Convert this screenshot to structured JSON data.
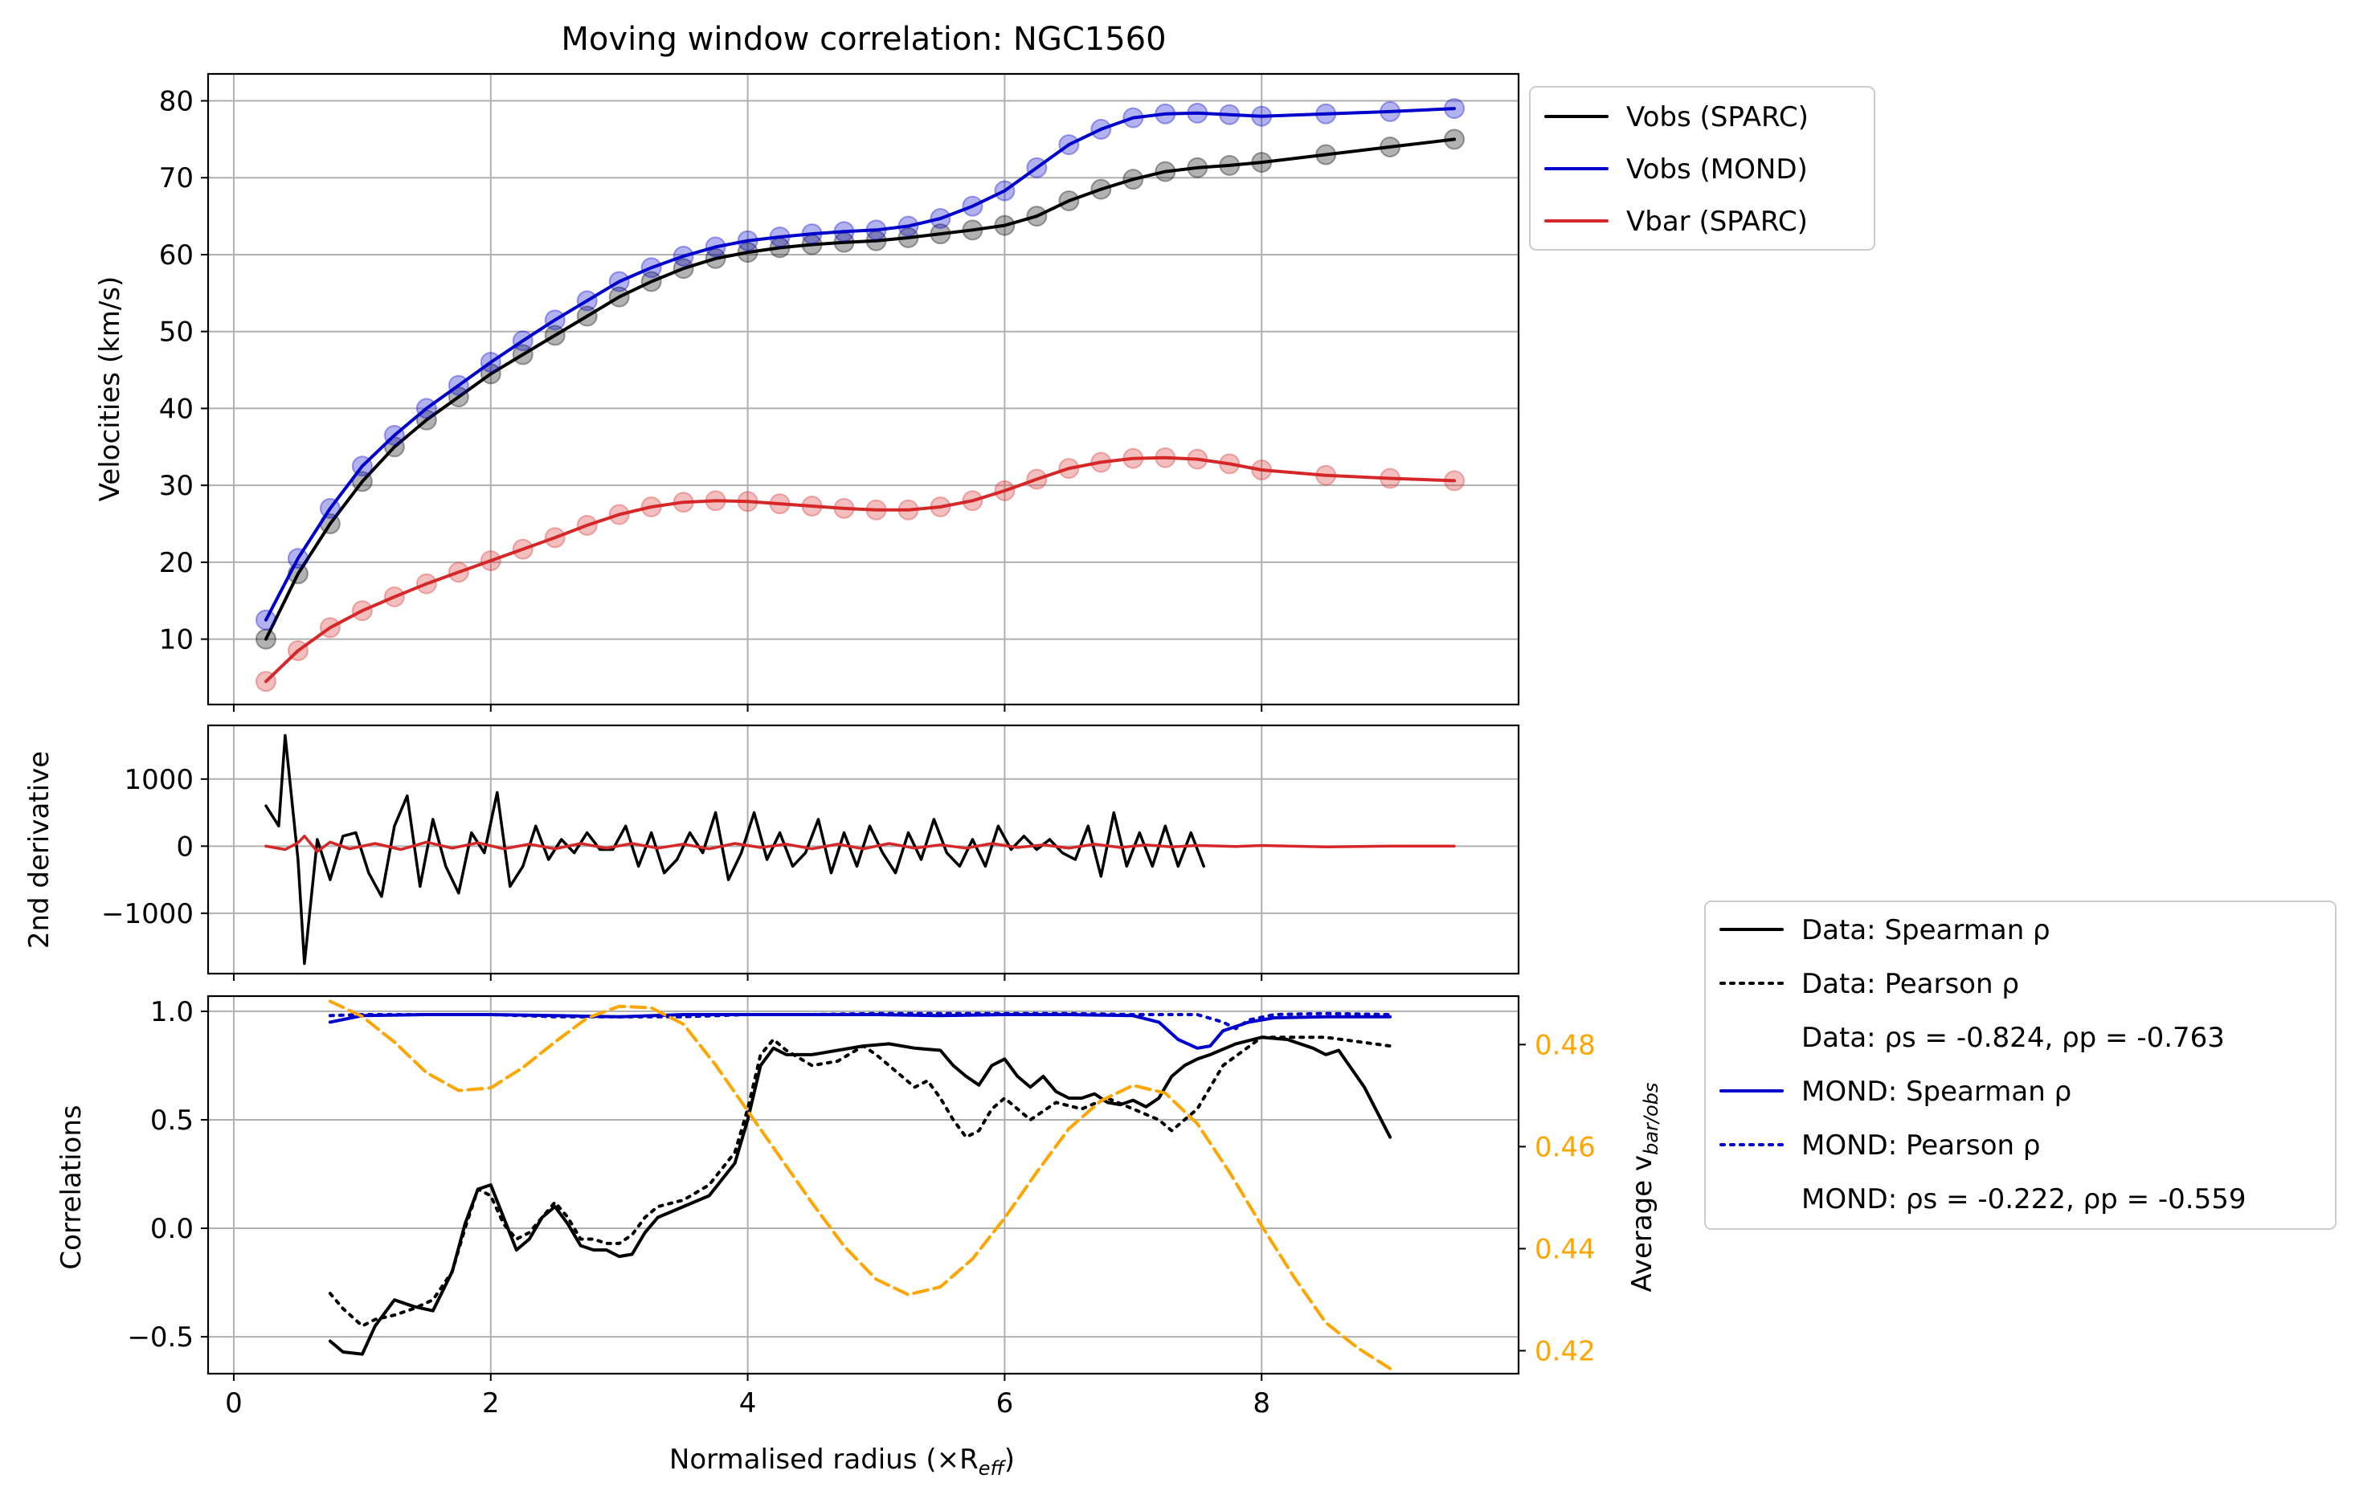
{
  "figure": {
    "title": "Moving window correlation: NGC1560",
    "xlabel": "Normalised radius (×R",
    "xlabel_sub": "eff",
    "xlabel_close": ")"
  },
  "colors": {
    "black": "#000000",
    "blue": "#0000cc",
    "red": "#d62728",
    "orange": "#ffa500",
    "grid": "#b0b0b0"
  },
  "legend_top": {
    "entries": [
      {
        "label": "Vobs (SPARC)",
        "color": "#000000",
        "style": "solid"
      },
      {
        "label": "Vobs (MOND)",
        "color": "#0000cc",
        "style": "solid"
      },
      {
        "label": "Vbar (SPARC)",
        "color": "#d62728",
        "style": "solid"
      }
    ],
    "position": "outside upper right"
  },
  "legend_bottom": {
    "entries": [
      {
        "label": "Data: Spearman ρ",
        "color": "#000000",
        "style": "solid"
      },
      {
        "label": "Data: Pearson ρ",
        "color": "#000000",
        "style": "dotted"
      },
      {
        "label": "Data: ρs = -0.824, ρp = -0.763",
        "color": "none",
        "style": "none"
      },
      {
        "label": "MOND: Spearman ρ",
        "color": "#0000cc",
        "style": "solid"
      },
      {
        "label": "MOND: Pearson ρ",
        "color": "#0000cc",
        "style": "dotted"
      },
      {
        "label": "MOND: ρs = -0.222, ρp = -0.559",
        "color": "none",
        "style": "none"
      }
    ],
    "position": "outside lower right"
  },
  "chart_data": [
    {
      "type": "line",
      "ylabel": "Velocities (km/s)",
      "xlim": [
        -0.2,
        10.0
      ],
      "ylim": [
        1.5,
        83.5
      ],
      "xticks": [
        0,
        2,
        4,
        6,
        8
      ],
      "yticks": [
        10,
        20,
        30,
        40,
        50,
        60,
        70,
        80
      ],
      "grid": true,
      "series": [
        {
          "name": "Vobs (SPARC)",
          "color": "#000000",
          "x": [
            0.25,
            0.5,
            0.75,
            1.0,
            1.25,
            1.5,
            1.75,
            2.0,
            2.25,
            2.5,
            2.75,
            3.0,
            3.25,
            3.5,
            3.75,
            4.0,
            4.25,
            4.5,
            4.75,
            5.0,
            5.25,
            5.5,
            5.75,
            6.0,
            6.25,
            6.5,
            6.75,
            7.0,
            7.25,
            7.5,
            7.75,
            8.0,
            8.5,
            9.0,
            9.5
          ],
          "y": [
            10,
            18.5,
            25,
            30.5,
            35,
            38.5,
            41.5,
            44.5,
            47,
            49.5,
            52,
            54.5,
            56.5,
            58.2,
            59.5,
            60.3,
            60.9,
            61.3,
            61.6,
            61.8,
            62.2,
            62.7,
            63.2,
            63.8,
            65,
            67,
            68.5,
            69.8,
            70.8,
            71.3,
            71.6,
            72,
            73,
            74,
            75
          ]
        },
        {
          "name": "Vobs (MOND)",
          "color": "#0000cc",
          "x": [
            0.25,
            0.5,
            0.75,
            1.0,
            1.25,
            1.5,
            1.75,
            2.0,
            2.25,
            2.5,
            2.75,
            3.0,
            3.25,
            3.5,
            3.75,
            4.0,
            4.25,
            4.5,
            4.75,
            5.0,
            5.25,
            5.5,
            5.75,
            6.0,
            6.25,
            6.5,
            6.75,
            7.0,
            7.25,
            7.5,
            7.75,
            8.0,
            8.5,
            9.0,
            9.5
          ],
          "y": [
            12.5,
            20.5,
            27,
            32.5,
            36.5,
            40,
            43,
            46,
            48.8,
            51.5,
            54,
            56.5,
            58.3,
            59.8,
            61,
            61.8,
            62.3,
            62.7,
            63,
            63.2,
            63.7,
            64.7,
            66.3,
            68.3,
            71.3,
            74.3,
            76.3,
            77.8,
            78.3,
            78.4,
            78.2,
            78,
            78.3,
            78.6,
            79
          ]
        },
        {
          "name": "Vbar (SPARC)",
          "color": "#d62728",
          "x": [
            0.25,
            0.5,
            0.75,
            1.0,
            1.25,
            1.5,
            1.75,
            2.0,
            2.25,
            2.5,
            2.75,
            3.0,
            3.25,
            3.5,
            3.75,
            4.0,
            4.25,
            4.5,
            4.75,
            5.0,
            5.25,
            5.5,
            5.75,
            6.0,
            6.25,
            6.5,
            6.75,
            7.0,
            7.25,
            7.5,
            7.75,
            8.0,
            8.5,
            9.0,
            9.5
          ],
          "y": [
            4.5,
            8.5,
            11.5,
            13.7,
            15.5,
            17.2,
            18.7,
            20.2,
            21.7,
            23.2,
            24.8,
            26.2,
            27.2,
            27.8,
            28,
            27.9,
            27.6,
            27.3,
            27,
            26.8,
            26.8,
            27.2,
            28,
            29.3,
            30.8,
            32.2,
            33,
            33.5,
            33.6,
            33.4,
            32.8,
            32,
            31.3,
            30.9,
            30.6
          ]
        }
      ]
    },
    {
      "type": "line",
      "ylabel": "2nd derivative",
      "xlim": [
        -0.2,
        10.0
      ],
      "ylim": [
        -1900,
        1800
      ],
      "yticks": [
        -1000,
        0,
        1000
      ],
      "ytick_labels": [
        "−1000",
        "0",
        "1000"
      ],
      "grid": true,
      "series": [
        {
          "name": "Vobs (SPARC)",
          "color": "#000000",
          "x": [
            0.25,
            0.35,
            0.4,
            0.5,
            0.55,
            0.65,
            0.75,
            0.85,
            0.95,
            1.05,
            1.15,
            1.25,
            1.35,
            1.45,
            1.55,
            1.65,
            1.75,
            1.85,
            1.95,
            2.05,
            2.15,
            2.25,
            2.35,
            2.45,
            2.55,
            2.65,
            2.75,
            2.85,
            2.95,
            3.05,
            3.15,
            3.25,
            3.35,
            3.45,
            3.55,
            3.65,
            3.75,
            3.85,
            3.95,
            4.05,
            4.15,
            4.25,
            4.35,
            4.45,
            4.55,
            4.65,
            4.75,
            4.85,
            4.95,
            5.05,
            5.15,
            5.25,
            5.35,
            5.45,
            5.55,
            5.65,
            5.75,
            5.85,
            5.95,
            6.05,
            6.15,
            6.25,
            6.35,
            6.45,
            6.55,
            6.65,
            6.75,
            6.85,
            6.95,
            7.05,
            7.15,
            7.25,
            7.35,
            7.45,
            7.55
          ],
          "y": [
            600,
            300,
            1650,
            -200,
            -1750,
            100,
            -500,
            150,
            200,
            -400,
            -750,
            300,
            750,
            -600,
            400,
            -300,
            -700,
            200,
            -100,
            800,
            -600,
            -300,
            300,
            -200,
            100,
            -100,
            200,
            -50,
            -50,
            300,
            -300,
            200,
            -400,
            -200,
            200,
            -100,
            500,
            -500,
            -100,
            500,
            -200,
            200,
            -300,
            -100,
            400,
            -400,
            200,
            -300,
            300,
            -100,
            -400,
            200,
            -200,
            400,
            -100,
            -300,
            100,
            -300,
            300,
            -50,
            150,
            -50,
            100,
            -100,
            -200,
            300,
            -450,
            500,
            -300,
            200,
            -300,
            300,
            -300,
            200,
            -300
          ]
        },
        {
          "name": "Vbar (SPARC)",
          "color": "#d62728",
          "x": [
            0.25,
            0.4,
            0.5,
            0.55,
            0.65,
            0.75,
            0.9,
            1.1,
            1.3,
            1.5,
            1.7,
            1.9,
            2.1,
            2.3,
            2.5,
            2.7,
            2.9,
            3.1,
            3.3,
            3.5,
            3.7,
            3.9,
            4.1,
            4.3,
            4.5,
            4.7,
            4.9,
            5.1,
            5.3,
            5.5,
            5.7,
            5.9,
            6.1,
            6.3,
            6.5,
            6.7,
            6.9,
            7.1,
            7.3,
            7.5,
            7.8,
            8.0,
            8.5,
            9.0,
            9.5
          ],
          "y": [
            0,
            -50,
            50,
            150,
            -80,
            60,
            -40,
            40,
            -50,
            60,
            -30,
            50,
            -40,
            30,
            -40,
            40,
            -30,
            40,
            -30,
            30,
            -40,
            40,
            -20,
            30,
            -40,
            30,
            -40,
            40,
            -30,
            20,
            -30,
            40,
            -20,
            20,
            -30,
            30,
            -20,
            20,
            -10,
            10,
            -5,
            10,
            -10,
            0,
            0
          ]
        }
      ]
    },
    {
      "type": "line",
      "ylabel": "Correlations",
      "y2label": "Average v",
      "y2label_sub": "bar/obs",
      "xlim": [
        -0.2,
        10.0
      ],
      "ylim": [
        -0.67,
        1.07
      ],
      "y2lim": [
        0.4155,
        0.4895
      ],
      "yticks": [
        -0.5,
        0.0,
        0.5,
        1.0
      ],
      "ytick_labels": [
        "−0.5",
        "0.0",
        "0.5",
        "1.0"
      ],
      "y2ticks": [
        0.42,
        0.44,
        0.46,
        0.48
      ],
      "xticks": [
        0,
        2,
        4,
        6,
        8
      ],
      "grid": true,
      "series": [
        {
          "name": "Data: Spearman ρ",
          "color": "#000000",
          "style": "solid",
          "x": [
            0.75,
            0.85,
            1.0,
            1.1,
            1.25,
            1.4,
            1.55,
            1.7,
            1.8,
            1.9,
            2.0,
            2.1,
            2.2,
            2.3,
            2.4,
            2.5,
            2.6,
            2.7,
            2.8,
            2.9,
            3.0,
            3.1,
            3.2,
            3.3,
            3.5,
            3.7,
            3.9,
            4.0,
            4.1,
            4.2,
            4.3,
            4.5,
            4.7,
            4.9,
            5.1,
            5.3,
            5.5,
            5.6,
            5.7,
            5.8,
            5.9,
            6.0,
            6.1,
            6.2,
            6.3,
            6.4,
            6.5,
            6.6,
            6.7,
            6.8,
            6.9,
            7.0,
            7.1,
            7.2,
            7.3,
            7.4,
            7.5,
            7.6,
            7.8,
            8.0,
            8.2,
            8.4,
            8.5,
            8.6,
            8.8,
            9.0
          ],
          "y": [
            -0.52,
            -0.57,
            -0.58,
            -0.45,
            -0.33,
            -0.36,
            -0.38,
            -0.2,
            0.02,
            0.18,
            0.2,
            0.05,
            -0.1,
            -0.05,
            0.05,
            0.1,
            0.02,
            -0.08,
            -0.1,
            -0.1,
            -0.13,
            -0.12,
            -0.02,
            0.05,
            0.1,
            0.15,
            0.3,
            0.5,
            0.75,
            0.83,
            0.8,
            0.8,
            0.82,
            0.84,
            0.85,
            0.83,
            0.82,
            0.75,
            0.7,
            0.66,
            0.75,
            0.78,
            0.7,
            0.65,
            0.7,
            0.63,
            0.6,
            0.6,
            0.62,
            0.58,
            0.57,
            0.59,
            0.56,
            0.6,
            0.7,
            0.75,
            0.78,
            0.8,
            0.85,
            0.88,
            0.87,
            0.83,
            0.8,
            0.82,
            0.65,
            0.42
          ]
        },
        {
          "name": "Data: Pearson ρ",
          "color": "#000000",
          "style": "dotted",
          "x": [
            0.75,
            0.85,
            1.0,
            1.1,
            1.25,
            1.4,
            1.55,
            1.7,
            1.8,
            1.9,
            2.0,
            2.1,
            2.2,
            2.3,
            2.4,
            2.5,
            2.6,
            2.7,
            2.8,
            2.9,
            3.0,
            3.1,
            3.2,
            3.3,
            3.5,
            3.7,
            3.9,
            4.0,
            4.1,
            4.2,
            4.3,
            4.5,
            4.7,
            4.9,
            5.0,
            5.2,
            5.3,
            5.4,
            5.5,
            5.6,
            5.7,
            5.8,
            5.9,
            6.0,
            6.1,
            6.2,
            6.4,
            6.6,
            6.8,
            7.0,
            7.2,
            7.3,
            7.5,
            7.7,
            8.0,
            8.5,
            9.0
          ],
          "y": [
            -0.3,
            -0.37,
            -0.45,
            -0.42,
            -0.4,
            -0.37,
            -0.33,
            -0.2,
            0.0,
            0.18,
            0.15,
            0.02,
            -0.05,
            -0.02,
            0.05,
            0.12,
            0.05,
            -0.05,
            -0.05,
            -0.07,
            -0.07,
            -0.03,
            0.05,
            0.1,
            0.13,
            0.2,
            0.35,
            0.55,
            0.8,
            0.87,
            0.82,
            0.75,
            0.77,
            0.84,
            0.8,
            0.7,
            0.65,
            0.68,
            0.6,
            0.5,
            0.42,
            0.45,
            0.55,
            0.6,
            0.55,
            0.5,
            0.58,
            0.55,
            0.6,
            0.55,
            0.5,
            0.45,
            0.55,
            0.75,
            0.88,
            0.88,
            0.84
          ]
        },
        {
          "name": "MOND: Spearman ρ",
          "color": "#0000cc",
          "style": "solid",
          "x": [
            0.75,
            1.0,
            1.5,
            2.0,
            2.5,
            3.0,
            3.5,
            4.0,
            4.5,
            5.0,
            5.5,
            6.0,
            6.5,
            7.0,
            7.2,
            7.35,
            7.5,
            7.6,
            7.7,
            7.9,
            8.1,
            8.5,
            9.0
          ],
          "y": [
            0.95,
            0.98,
            0.985,
            0.985,
            0.98,
            0.975,
            0.985,
            0.985,
            0.985,
            0.985,
            0.98,
            0.985,
            0.985,
            0.98,
            0.95,
            0.87,
            0.83,
            0.84,
            0.91,
            0.95,
            0.97,
            0.975,
            0.975
          ]
        },
        {
          "name": "MOND: Pearson ρ",
          "color": "#0000cc",
          "style": "dotted",
          "x": [
            0.75,
            1.0,
            1.5,
            2.0,
            2.5,
            3.0,
            3.5,
            4.0,
            4.5,
            5.0,
            5.5,
            6.0,
            6.5,
            7.0,
            7.5,
            7.7,
            7.8,
            7.9,
            8.1,
            8.5,
            9.0
          ],
          "y": [
            0.98,
            0.985,
            0.985,
            0.985,
            0.975,
            0.975,
            0.975,
            0.985,
            0.985,
            0.99,
            0.99,
            0.99,
            0.99,
            0.985,
            0.985,
            0.95,
            0.92,
            0.96,
            0.985,
            0.99,
            0.985
          ]
        },
        {
          "name": "Average vbar/vobs",
          "color": "#ffa500",
          "style": "dashed",
          "axis": "right",
          "x": [
            0.75,
            1.0,
            1.25,
            1.5,
            1.75,
            2.0,
            2.25,
            2.5,
            2.75,
            3.0,
            3.25,
            3.5,
            3.75,
            4.0,
            4.25,
            4.5,
            4.75,
            5.0,
            5.25,
            5.5,
            5.75,
            6.0,
            6.25,
            6.5,
            6.75,
            7.0,
            7.25,
            7.5,
            7.75,
            8.0,
            8.25,
            8.5,
            8.75,
            9.0
          ],
          "y": [
            0.4885,
            0.4855,
            0.4805,
            0.4745,
            0.471,
            0.4715,
            0.4755,
            0.4805,
            0.4852,
            0.4875,
            0.4872,
            0.484,
            0.476,
            0.467,
            0.458,
            0.449,
            0.4405,
            0.434,
            0.431,
            0.4325,
            0.438,
            0.446,
            0.455,
            0.4635,
            0.469,
            0.472,
            0.4705,
            0.4645,
            0.455,
            0.4445,
            0.4345,
            0.4255,
            0.4205,
            0.4165
          ]
        }
      ]
    }
  ]
}
